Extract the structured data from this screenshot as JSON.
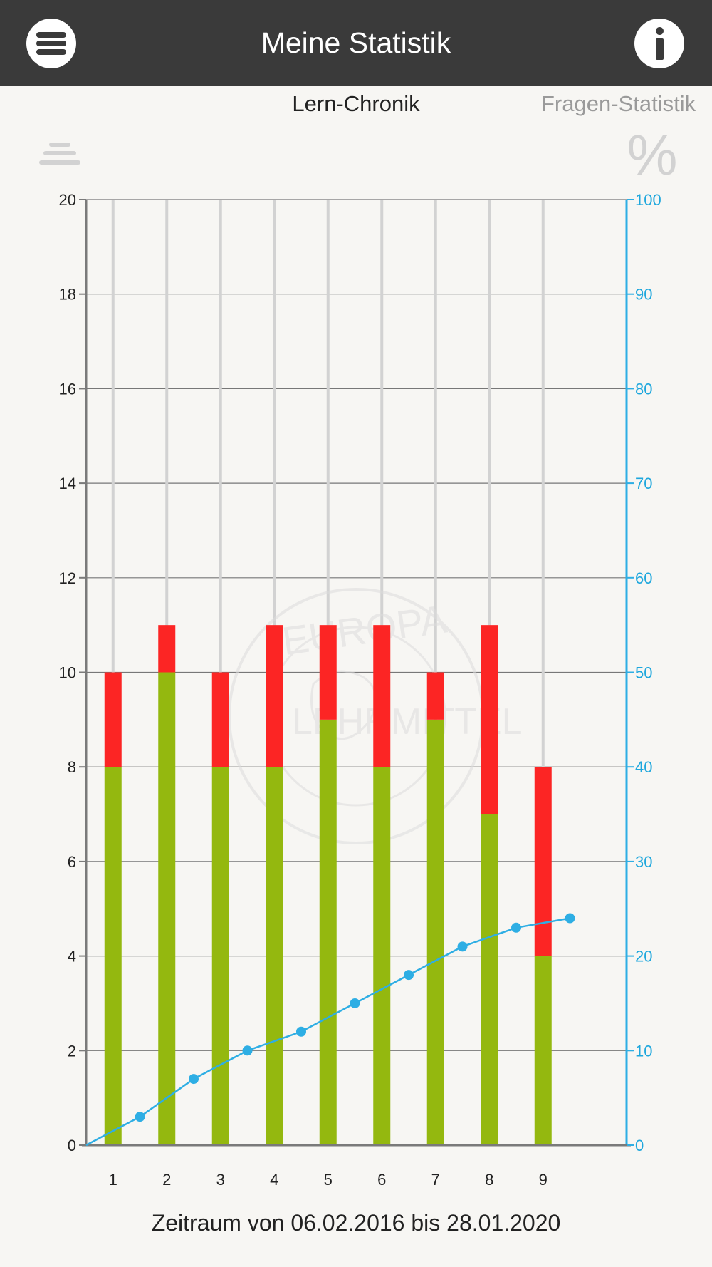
{
  "header": {
    "title": "Meine Statistik",
    "menu_icon": "menu-icon",
    "info_icon": "info-icon"
  },
  "tabs": [
    {
      "label": "Lern-Chronik",
      "active": true
    },
    {
      "label": "Fragen-Statistik",
      "active": false
    }
  ],
  "toolbar": {
    "list_icon": "list-icon",
    "percent_icon": "percent-icon",
    "percent_symbol": "%"
  },
  "chart_data": {
    "type": "bar",
    "stacked": true,
    "categories": [
      "1",
      "2",
      "3",
      "4",
      "5",
      "6",
      "7",
      "8",
      "9"
    ],
    "series": [
      {
        "color": "#94b80f",
        "values": [
          8,
          10,
          8,
          8,
          9,
          8,
          9,
          7,
          4
        ]
      },
      {
        "color": "#fc2524",
        "values": [
          2,
          1,
          2,
          3,
          2,
          3,
          1,
          4,
          4
        ]
      }
    ],
    "line_series": {
      "axis": "right",
      "color": "#2eaee4",
      "points": [
        [
          0,
          0
        ],
        [
          1,
          3
        ],
        [
          2,
          7
        ],
        [
          3,
          10
        ],
        [
          4,
          12
        ],
        [
          5,
          15
        ],
        [
          6,
          18
        ],
        [
          7,
          21
        ],
        [
          8,
          23
        ],
        [
          9,
          24
        ]
      ]
    },
    "y_left": {
      "ylim": [
        0,
        20
      ],
      "ticks": [
        "0",
        "2",
        "4",
        "6",
        "8",
        "10",
        "12",
        "14",
        "16",
        "18",
        "20"
      ]
    },
    "y_right": {
      "ylim": [
        0,
        100
      ],
      "ticks": [
        "0",
        "10",
        "20",
        "30",
        "40",
        "50",
        "60",
        "70",
        "80",
        "90",
        "100"
      ]
    },
    "grid": true,
    "watermark": [
      "EUROPA",
      "LEHRMITTEL"
    ]
  },
  "footer": {
    "period": "Zeitraum von 06.02.2016 bis 28.01.2020"
  }
}
